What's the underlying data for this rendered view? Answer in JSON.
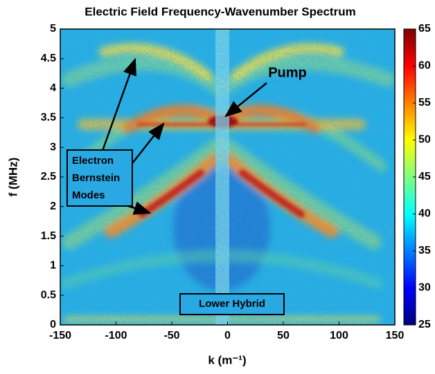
{
  "chart_data": {
    "type": "heatmap",
    "title": "Electric Field Frequency-Wavenumber  Spectrum",
    "xlabel": "k (m⁻¹)",
    "ylabel": "f (MHz)",
    "xlim": [
      -150,
      150
    ],
    "xticks": [
      -150,
      -100,
      -50,
      0,
      50,
      100,
      150
    ],
    "ylim": [
      0,
      5
    ],
    "yticks": [
      0,
      0.5,
      1,
      1.5,
      2,
      2.5,
      3,
      3.5,
      4,
      4.5,
      5
    ],
    "colormap": "jet",
    "clim": [
      25,
      65
    ],
    "cticks": [
      25,
      30,
      35,
      40,
      45,
      50,
      55,
      60,
      65
    ],
    "annotations": {
      "pump": "Pump",
      "ebm": [
        "Electron",
        "Bernstein",
        "Modes"
      ],
      "lh": "Lower Hybrid"
    }
  }
}
